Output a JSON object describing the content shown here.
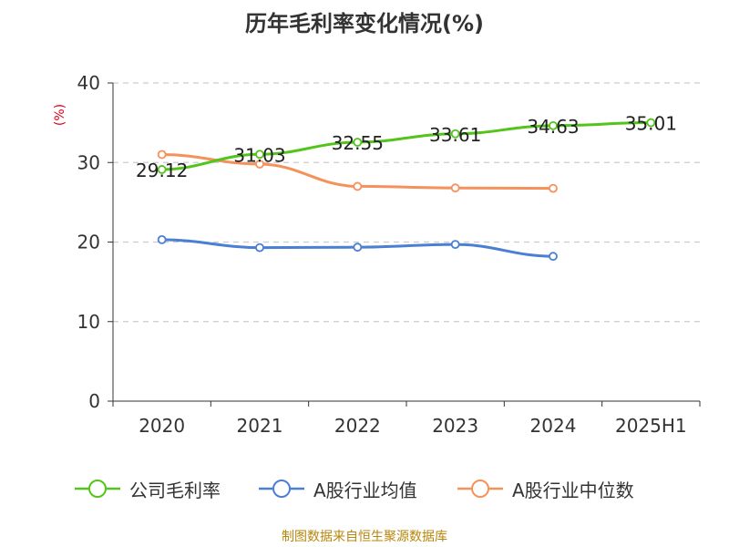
{
  "title": "历年毛利率变化情况(%)",
  "source": "制图数据来自恒生聚源数据库",
  "chart_data": {
    "type": "line",
    "title": "历年毛利率变化情况(%)",
    "ylabel": "(%)",
    "xlabel": "",
    "ylim": [
      0,
      40
    ],
    "yticks": [
      0,
      10,
      20,
      30,
      40
    ],
    "categories": [
      "2020",
      "2021",
      "2022",
      "2023",
      "2024",
      "2025H1"
    ],
    "grid": true,
    "legend_position": "bottom",
    "series": [
      {
        "name": "公司毛利率",
        "color": "#52c41a",
        "values": [
          29.12,
          31.03,
          32.55,
          33.61,
          34.63,
          35.01
        ],
        "data_labels": [
          "29.12",
          "31.03",
          "32.55",
          "33.61",
          "34.63",
          "35.01"
        ]
      },
      {
        "name": "A股行业均值",
        "color": "#4a7fd4",
        "values": [
          20.3,
          19.3,
          19.35,
          19.7,
          18.2,
          null
        ]
      },
      {
        "name": "A股行业中位数",
        "color": "#f5915a",
        "values": [
          31.0,
          29.8,
          27.0,
          26.8,
          26.75,
          null
        ]
      }
    ]
  }
}
